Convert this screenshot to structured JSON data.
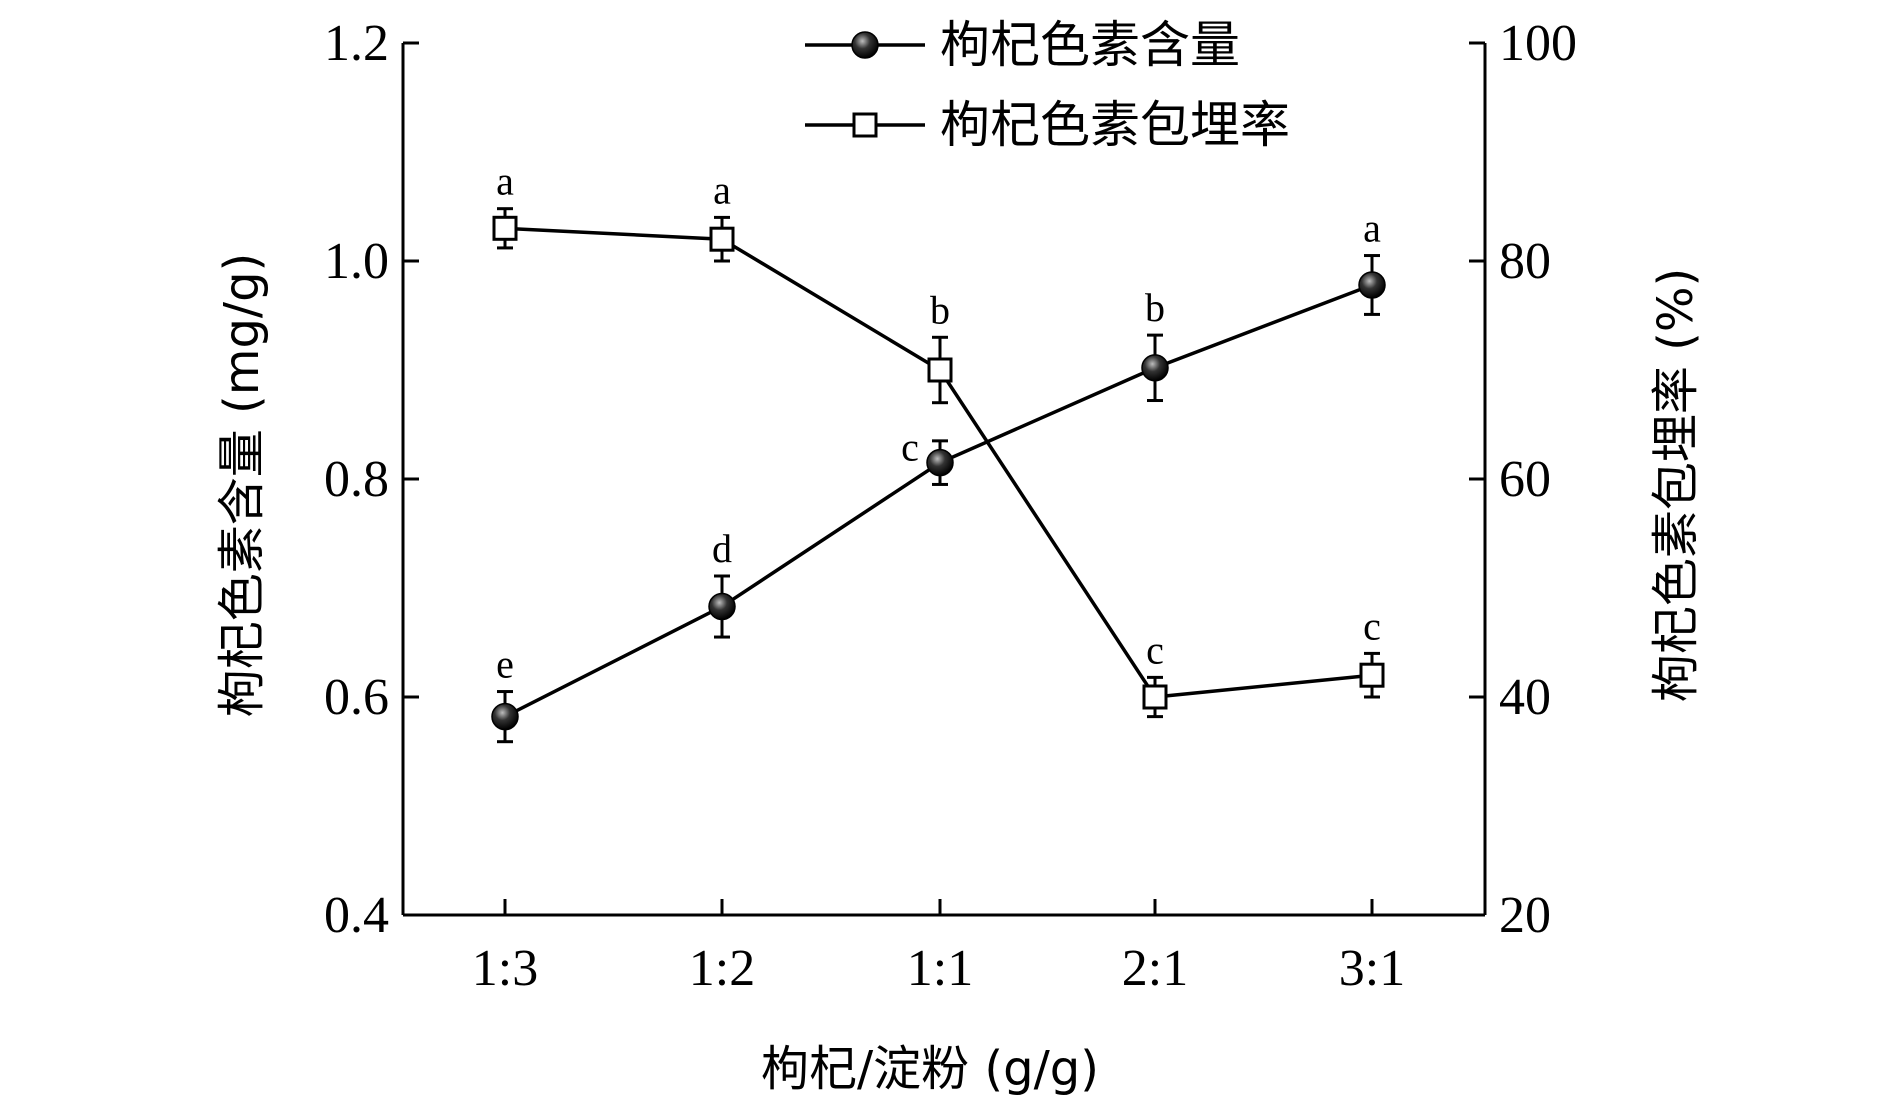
{
  "chart_data": {
    "type": "line",
    "categories": [
      "1:3",
      "1:2",
      "1:1",
      "2:1",
      "3:1"
    ],
    "xlabel": "枸杞/淀粉 (g/g)",
    "ylabel": "枸杞色素含量 (mg/g)",
    "y2label": "枸杞色素包埋率 (%)",
    "ylim": [
      0.4,
      1.2
    ],
    "y2lim": [
      20,
      100
    ],
    "yticks": [
      "0.4",
      "0.6",
      "0.8",
      "1.0",
      "1.2"
    ],
    "y2ticks": [
      "20",
      "40",
      "60",
      "80",
      "100"
    ],
    "legend_position": "top-right",
    "grid": false,
    "series": [
      {
        "name": "枸杞色素含量",
        "axis": "left",
        "marker": "filled-circle",
        "values": [
          0.582,
          0.683,
          0.815,
          0.902,
          0.978
        ],
        "errors": [
          0.023,
          0.028,
          0.02,
          0.03,
          0.027
        ],
        "letters": [
          "e",
          "d",
          "c",
          "b",
          "a"
        ]
      },
      {
        "name": "枸杞色素包埋率",
        "axis": "right",
        "marker": "open-square",
        "values": [
          83.0,
          82.0,
          70.0,
          40.0,
          42.0
        ],
        "errors": [
          1.8,
          2.0,
          3.0,
          1.8,
          2.0
        ],
        "letters": [
          "a",
          "a",
          "b",
          "c",
          "c"
        ]
      }
    ]
  }
}
